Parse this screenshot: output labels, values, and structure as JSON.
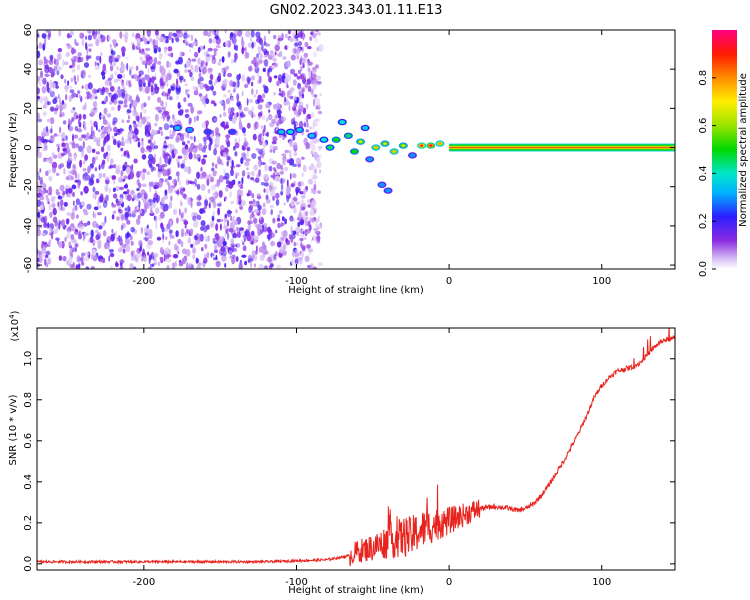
{
  "title": "GN02.2023.343.01.11.E13",
  "colors": {
    "snr_line": "#e8231d",
    "band_center": "#e8231d"
  },
  "chart_data": [
    {
      "type": "heatmap",
      "xlabel": "Height of straight line (km)",
      "ylabel": "Frequency (Hz)",
      "xlim": [
        -270,
        148
      ],
      "ylim": [
        -62,
        60
      ],
      "x_ticks": [
        "-200",
        "-100",
        "0",
        "100"
      ],
      "x_tick_values": [
        -200,
        -100,
        0,
        100
      ],
      "y_ticks": [
        "60",
        "40",
        "20",
        "0",
        "-20",
        "-40",
        "-60"
      ],
      "y_tick_values": [
        60,
        40,
        20,
        0,
        -20,
        -40,
        -60
      ],
      "grid": false,
      "noise_region_km": [
        -270,
        -84
      ],
      "signal_band": {
        "x_start": 0,
        "x_end": 148,
        "center_hz": 0,
        "half_width_hz": 2
      },
      "colorbar": {
        "label": "Normalized spectral amplitude",
        "range": [
          0.0,
          1.0
        ],
        "ticks": [
          "0.0",
          "0.2",
          "0.4",
          "0.6",
          "0.8"
        ],
        "tick_values": [
          0.0,
          0.2,
          0.4,
          0.6,
          0.8
        ],
        "colormap": "rainbow"
      },
      "blobs": [
        {
          "x": -178,
          "y": 10,
          "v": 0.35
        },
        {
          "x": -170,
          "y": 9,
          "v": 0.3
        },
        {
          "x": -158,
          "y": 8,
          "v": 0.25
        },
        {
          "x": -142,
          "y": 8,
          "v": 0.25
        },
        {
          "x": -110,
          "y": 8,
          "v": 0.35
        },
        {
          "x": -104,
          "y": 8,
          "v": 0.4
        },
        {
          "x": -98,
          "y": 9,
          "v": 0.35
        },
        {
          "x": -90,
          "y": 6,
          "v": 0.35
        },
        {
          "x": -82,
          "y": 4,
          "v": 0.4
        },
        {
          "x": -78,
          "y": 0,
          "v": 0.45
        },
        {
          "x": -74,
          "y": 4,
          "v": 0.5
        },
        {
          "x": -70,
          "y": 13,
          "v": 0.4
        },
        {
          "x": -66,
          "y": 6,
          "v": 0.45
        },
        {
          "x": -62,
          "y": -2,
          "v": 0.5
        },
        {
          "x": -58,
          "y": 3,
          "v": 0.55
        },
        {
          "x": -55,
          "y": 10,
          "v": 0.35
        },
        {
          "x": -52,
          "y": -6,
          "v": 0.3
        },
        {
          "x": -48,
          "y": 0,
          "v": 0.6
        },
        {
          "x": -44,
          "y": -19,
          "v": 0.3
        },
        {
          "x": -40,
          "y": -22,
          "v": 0.3
        },
        {
          "x": -42,
          "y": 2,
          "v": 0.55
        },
        {
          "x": -36,
          "y": -2,
          "v": 0.6
        },
        {
          "x": -30,
          "y": 1,
          "v": 0.55
        },
        {
          "x": -24,
          "y": -4,
          "v": 0.3
        },
        {
          "x": -18,
          "y": 1,
          "v": 0.75
        },
        {
          "x": -12,
          "y": 1,
          "v": 0.8
        },
        {
          "x": -6,
          "y": 2,
          "v": 0.65
        }
      ]
    },
    {
      "type": "line",
      "xlabel": "Height of straight line (km)",
      "ylabel": "SNR (10 * v/v)",
      "scale_label": "(x10",
      "scale_exponent": "4",
      "scale_suffix": ")",
      "xlim": [
        -270,
        148
      ],
      "ylim": [
        -0.03,
        1.15
      ],
      "x_ticks": [
        "-200",
        "-100",
        "0",
        "100"
      ],
      "x_tick_values": [
        -200,
        -100,
        0,
        100
      ],
      "y_ticks": [
        "0.0",
        "0.2",
        "0.4",
        "0.6",
        "0.8",
        "1.0"
      ],
      "y_tick_values": [
        0.0,
        0.2,
        0.4,
        0.6,
        0.8,
        1.0
      ],
      "grid": false,
      "series": [
        {
          "x": [
            -270,
            -200,
            -120,
            -80,
            -65,
            -60,
            -50,
            -40,
            -30,
            -25,
            -20,
            -10,
            0,
            10,
            20,
            30,
            40,
            45,
            50,
            55,
            60,
            65,
            70,
            75,
            80,
            85,
            90,
            95,
            100,
            105,
            110,
            115,
            120,
            125,
            130,
            135,
            140,
            148
          ],
          "y": [
            0.01,
            0.01,
            0.01,
            0.02,
            0.04,
            0.06,
            0.08,
            0.11,
            0.13,
            0.13,
            0.16,
            0.19,
            0.21,
            0.24,
            0.27,
            0.28,
            0.27,
            0.26,
            0.27,
            0.29,
            0.33,
            0.38,
            0.44,
            0.5,
            0.57,
            0.64,
            0.72,
            0.81,
            0.87,
            0.91,
            0.94,
            0.95,
            0.96,
            0.98,
            1.02,
            1.06,
            1.09,
            1.1
          ]
        }
      ]
    }
  ]
}
